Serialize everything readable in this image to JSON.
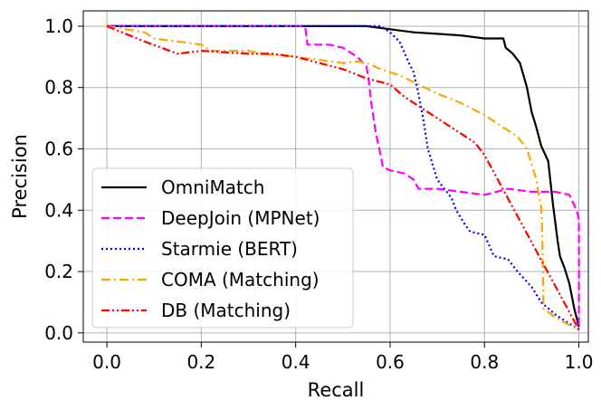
{
  "chart_data": {
    "type": "line",
    "title": "",
    "xlabel": "Recall",
    "ylabel": "Precision",
    "xlim": [
      -0.05,
      1.02
    ],
    "ylim": [
      -0.03,
      1.05
    ],
    "grid": true,
    "legend_position": "lower-left",
    "x_ticks": [
      "0.0",
      "0.2",
      "0.4",
      "0.6",
      "0.8",
      "1.0"
    ],
    "y_ticks": [
      "0.0",
      "0.2",
      "0.4",
      "0.6",
      "0.8",
      "1.0"
    ],
    "series": [
      {
        "name": "OmniMatch",
        "color": "#000000",
        "style": "solid",
        "points": [
          [
            0.0,
            1.0
          ],
          [
            0.55,
            1.0
          ],
          [
            0.6,
            0.99
          ],
          [
            0.65,
            0.98
          ],
          [
            0.7,
            0.975
          ],
          [
            0.75,
            0.97
          ],
          [
            0.8,
            0.96
          ],
          [
            0.84,
            0.96
          ],
          [
            0.845,
            0.93
          ],
          [
            0.86,
            0.91
          ],
          [
            0.875,
            0.88
          ],
          [
            0.89,
            0.8
          ],
          [
            0.9,
            0.72
          ],
          [
            0.91,
            0.67
          ],
          [
            0.92,
            0.61
          ],
          [
            0.935,
            0.56
          ],
          [
            0.945,
            0.42
          ],
          [
            0.95,
            0.36
          ],
          [
            0.955,
            0.3
          ],
          [
            0.96,
            0.25
          ],
          [
            0.97,
            0.21
          ],
          [
            0.98,
            0.16
          ],
          [
            0.99,
            0.08
          ],
          [
            1.0,
            0.02
          ]
        ]
      },
      {
        "name": "DeepJoin (MPNet)",
        "color": "#ff00ff",
        "style": "dashed",
        "points": [
          [
            0.0,
            1.0
          ],
          [
            0.41,
            1.0
          ],
          [
            0.42,
            1.0
          ],
          [
            0.425,
            0.94
          ],
          [
            0.47,
            0.94
          ],
          [
            0.5,
            0.93
          ],
          [
            0.53,
            0.9
          ],
          [
            0.55,
            0.87
          ],
          [
            0.555,
            0.82
          ],
          [
            0.56,
            0.75
          ],
          [
            0.57,
            0.65
          ],
          [
            0.58,
            0.58
          ],
          [
            0.585,
            0.54
          ],
          [
            0.6,
            0.53
          ],
          [
            0.63,
            0.52
          ],
          [
            0.65,
            0.5
          ],
          [
            0.66,
            0.47
          ],
          [
            0.7,
            0.47
          ],
          [
            0.75,
            0.46
          ],
          [
            0.8,
            0.45
          ],
          [
            0.85,
            0.47
          ],
          [
            0.9,
            0.46
          ],
          [
            0.95,
            0.46
          ],
          [
            0.98,
            0.45
          ],
          [
            0.995,
            0.4
          ],
          [
            1.0,
            0.37
          ],
          [
            1.0,
            0.01
          ]
        ]
      },
      {
        "name": "Starmie (BERT)",
        "color": "#0000ff",
        "style": "dotted",
        "points": [
          [
            0.0,
            1.0
          ],
          [
            0.58,
            1.0
          ],
          [
            0.6,
            0.98
          ],
          [
            0.62,
            0.95
          ],
          [
            0.64,
            0.88
          ],
          [
            0.65,
            0.85
          ],
          [
            0.66,
            0.78
          ],
          [
            0.67,
            0.7
          ],
          [
            0.68,
            0.6
          ],
          [
            0.69,
            0.55
          ],
          [
            0.7,
            0.5
          ],
          [
            0.72,
            0.46
          ],
          [
            0.73,
            0.44
          ],
          [
            0.74,
            0.4
          ],
          [
            0.76,
            0.35
          ],
          [
            0.77,
            0.33
          ],
          [
            0.8,
            0.32
          ],
          [
            0.82,
            0.25
          ],
          [
            0.85,
            0.24
          ],
          [
            0.87,
            0.2
          ],
          [
            0.9,
            0.15
          ],
          [
            0.92,
            0.1
          ],
          [
            0.95,
            0.06
          ],
          [
            1.0,
            0.01
          ]
        ]
      },
      {
        "name": "COMA (Matching)",
        "color": "#ffa500",
        "style": "dashdot",
        "points": [
          [
            0.0,
            1.0
          ],
          [
            0.08,
            0.98
          ],
          [
            0.1,
            0.96
          ],
          [
            0.15,
            0.95
          ],
          [
            0.2,
            0.94
          ],
          [
            0.22,
            0.92
          ],
          [
            0.3,
            0.92
          ],
          [
            0.33,
            0.91
          ],
          [
            0.4,
            0.9
          ],
          [
            0.45,
            0.89
          ],
          [
            0.5,
            0.88
          ],
          [
            0.53,
            0.885
          ],
          [
            0.55,
            0.88
          ],
          [
            0.58,
            0.86
          ],
          [
            0.62,
            0.84
          ],
          [
            0.66,
            0.81
          ],
          [
            0.7,
            0.78
          ],
          [
            0.75,
            0.75
          ],
          [
            0.8,
            0.71
          ],
          [
            0.84,
            0.67
          ],
          [
            0.87,
            0.64
          ],
          [
            0.89,
            0.6
          ],
          [
            0.9,
            0.55
          ],
          [
            0.91,
            0.5
          ],
          [
            0.915,
            0.45
          ],
          [
            0.92,
            0.41
          ],
          [
            0.922,
            0.35
          ],
          [
            0.925,
            0.08
          ],
          [
            0.95,
            0.05
          ],
          [
            1.0,
            0.01
          ]
        ]
      },
      {
        "name": "DB (Matching)",
        "color": "#ff0000",
        "style": "dashdotdot",
        "points": [
          [
            0.0,
            1.0
          ],
          [
            0.08,
            0.95
          ],
          [
            0.15,
            0.91
          ],
          [
            0.2,
            0.92
          ],
          [
            0.3,
            0.91
          ],
          [
            0.35,
            0.91
          ],
          [
            0.4,
            0.9
          ],
          [
            0.45,
            0.88
          ],
          [
            0.5,
            0.86
          ],
          [
            0.55,
            0.83
          ],
          [
            0.6,
            0.81
          ],
          [
            0.63,
            0.77
          ],
          [
            0.66,
            0.74
          ],
          [
            0.7,
            0.7
          ],
          [
            0.74,
            0.66
          ],
          [
            0.78,
            0.62
          ],
          [
            0.8,
            0.58
          ],
          [
            1.0,
            0.01
          ]
        ]
      }
    ]
  }
}
